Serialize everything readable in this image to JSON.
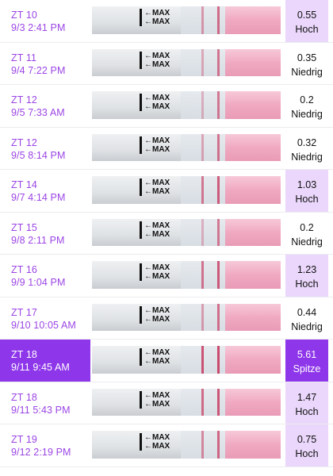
{
  "rows": [
    {
      "label": "ZT 10",
      "datetime": "9/3 2:41 PM",
      "value": "0.55",
      "level": "Hoch",
      "highlight": true,
      "active": false,
      "line_intensity": 0.45
    },
    {
      "label": "ZT 11",
      "datetime": "9/4 7:22 PM",
      "value": "0.35",
      "level": "Niedrig",
      "highlight": false,
      "active": false,
      "line_intensity": 0.3
    },
    {
      "label": "ZT 12",
      "datetime": "9/5 7:33 AM",
      "value": "0.2",
      "level": "Niedrig",
      "highlight": false,
      "active": false,
      "line_intensity": 0.25
    },
    {
      "label": "ZT 12",
      "datetime": "9/5 8:14 PM",
      "value": "0.32",
      "level": "Niedrig",
      "highlight": false,
      "active": false,
      "line_intensity": 0.35
    },
    {
      "label": "ZT 14",
      "datetime": "9/7 4:14 PM",
      "value": "1.03",
      "level": "Hoch",
      "highlight": true,
      "active": false,
      "line_intensity": 0.7
    },
    {
      "label": "ZT 15",
      "datetime": "9/8 2:11 PM",
      "value": "0.2",
      "level": "Niedrig",
      "highlight": false,
      "active": false,
      "line_intensity": 0.25
    },
    {
      "label": "ZT 16",
      "datetime": "9/9 1:04 PM",
      "value": "1.23",
      "level": "Hoch",
      "highlight": true,
      "active": false,
      "line_intensity": 0.75
    },
    {
      "label": "ZT 17",
      "datetime": "9/10 10:05 AM",
      "value": "0.44",
      "level": "Niedrig",
      "highlight": false,
      "active": false,
      "line_intensity": 0.4
    },
    {
      "label": "ZT 18",
      "datetime": "9/11 9:45 AM",
      "value": "5.61",
      "level": "Spitze",
      "highlight": true,
      "active": true,
      "line_intensity": 1.0
    },
    {
      "label": "ZT 18",
      "datetime": "9/11 5:43 PM",
      "value": "1.47",
      "level": "Hoch",
      "highlight": true,
      "active": false,
      "line_intensity": 0.8
    },
    {
      "label": "ZT 19",
      "datetime": "9/12 2:19 PM",
      "value": "0.75",
      "level": "Hoch",
      "highlight": true,
      "active": false,
      "line_intensity": 0.55
    }
  ],
  "strip_label": "MAX",
  "colors": {
    "accent": "#9b45e4",
    "active_bg": "#8e36ea",
    "highlight_bg": "#ead7fb",
    "test_line": "#c8385f"
  }
}
